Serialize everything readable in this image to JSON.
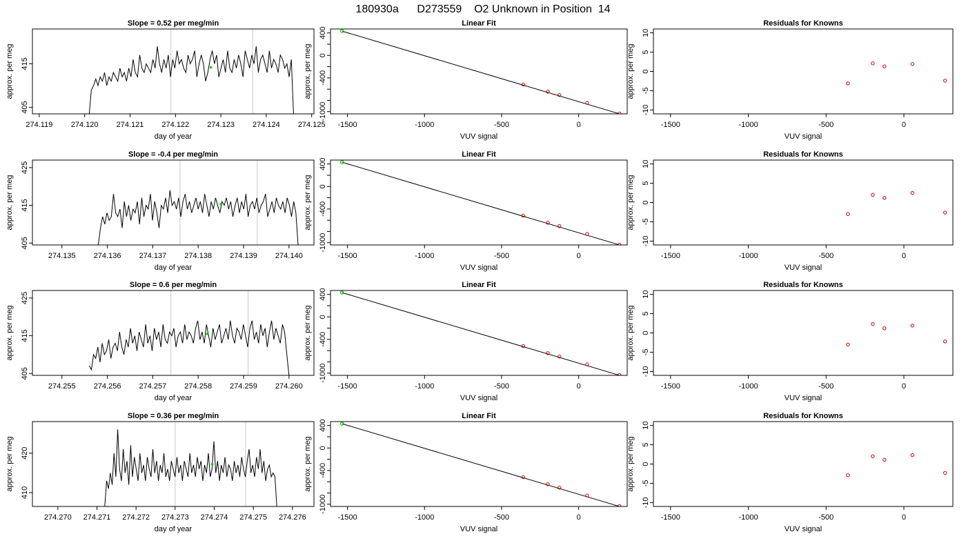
{
  "figure_title": "180930a      D273559    O2 Unknown in Position  14",
  "chart_data": [
    {
      "row": 1,
      "col": 1,
      "type": "line",
      "title": "Slope =  0.52  per meg/min",
      "xlabel": "day of year",
      "ylabel": "approx. per meg",
      "xlim": [
        274.11885,
        274.12505
      ],
      "ylim": [
        403.5,
        423
      ],
      "xticks": [
        274.119,
        274.12,
        274.121,
        274.122,
        274.123,
        274.124,
        274.125
      ],
      "yticks": [
        405,
        415
      ],
      "xdecimals": 3,
      "vlines": [
        274.1219,
        274.1237
      ],
      "x_start": 274.1201,
      "x_end": 274.1246,
      "values": [
        403.5,
        409,
        410,
        411.5,
        410,
        412,
        411,
        413,
        410,
        412,
        411,
        413,
        412,
        411,
        414,
        412,
        413,
        411,
        414,
        412,
        416,
        413,
        412,
        417,
        414,
        413,
        415,
        414,
        413,
        416,
        414,
        419,
        415,
        413,
        416,
        414,
        417,
        412,
        416,
        414,
        418,
        415,
        416,
        414,
        413,
        417,
        415,
        416,
        418,
        412,
        415,
        417,
        415,
        411,
        413,
        416,
        418,
        415,
        417,
        412,
        414,
        416,
        413,
        418,
        414,
        413,
        416,
        414,
        417,
        415,
        412,
        418,
        416,
        414,
        417,
        415,
        419,
        413,
        416,
        417,
        415,
        413,
        418,
        414,
        416,
        415,
        413,
        417,
        416,
        414,
        415,
        412,
        416,
        403.5
      ],
      "green_points": [
        {
          "x": 274.12278,
          "y": 414.2
        }
      ],
      "line_color": "#000000"
    },
    {
      "row": 1,
      "col": 2,
      "type": "scatter",
      "title": "Linear Fit",
      "xlabel": "VUV signal",
      "ylabel": "approx. per meg",
      "xlim": [
        -1610,
        315
      ],
      "ylim": [
        -1040,
        470
      ],
      "xticks": [
        -1500,
        -1000,
        -500,
        0
      ],
      "yticks": [
        400,
        0,
        -400,
        -1000
      ],
      "yminor": [
        200,
        -200,
        -600,
        -800
      ],
      "fit_line": [
        [
          -1535,
          432
        ],
        [
          265,
          -1040
        ]
      ],
      "known_points": [
        {
          "x": -360,
          "y": -518
        },
        {
          "x": -200,
          "y": -645
        },
        {
          "x": -125,
          "y": -705
        },
        {
          "x": 55,
          "y": -845
        },
        {
          "x": 265,
          "y": -1035
        }
      ],
      "unknown_points": [
        {
          "x": -1535,
          "y": 432
        }
      ],
      "known_color": "#cc0000",
      "unknown_color": "#00cc00"
    },
    {
      "row": 1,
      "col": 3,
      "type": "scatter",
      "title": "Residuals for Knowns",
      "xlabel": "VUV signal",
      "ylabel": "approx. per meg",
      "xlim": [
        -1610,
        315
      ],
      "ylim": [
        -11,
        11
      ],
      "xticks": [
        -1500,
        -1000,
        -500,
        0
      ],
      "yticks": [
        10,
        5,
        0,
        -5,
        -10
      ],
      "points": [
        {
          "x": -360,
          "y": -3.1
        },
        {
          "x": -200,
          "y": 2.1
        },
        {
          "x": -125,
          "y": 1.3
        },
        {
          "x": 55,
          "y": 1.9
        },
        {
          "x": 265,
          "y": -2.4
        }
      ],
      "point_color": "#cc0000"
    },
    {
      "row": 2,
      "col": 1,
      "type": "line",
      "title": "Slope =  -0.4  per meg/min",
      "xlabel": "day of year",
      "ylabel": "approx. per meg",
      "xlim": [
        274.13435,
        274.14055
      ],
      "ylim": [
        404.5,
        427
      ],
      "xticks": [
        274.135,
        274.136,
        274.137,
        274.138,
        274.139,
        274.14
      ],
      "yticks": [
        405,
        415,
        425
      ],
      "xdecimals": 3,
      "vlines": [
        274.1376,
        274.1393
      ],
      "x_start": 274.1358,
      "x_end": 274.1402,
      "values": [
        404.5,
        409,
        412,
        410,
        413,
        411,
        412,
        418,
        413,
        412,
        414,
        409,
        416,
        412,
        415,
        411,
        414,
        413,
        416,
        410,
        417,
        412,
        415,
        414,
        418,
        411,
        416,
        413,
        409,
        415,
        414,
        417,
        413,
        419,
        415,
        416,
        414,
        417,
        412,
        416,
        418,
        414,
        416,
        413,
        415,
        417,
        414,
        416,
        413,
        418,
        415,
        412,
        416,
        414,
        417,
        415,
        413,
        416,
        415,
        417,
        414,
        416,
        412,
        415,
        417,
        413,
        416,
        414,
        418,
        412,
        415,
        416,
        414,
        417,
        413,
        415,
        416,
        418,
        412,
        414,
        416,
        413,
        417,
        415,
        414,
        416,
        413,
        417,
        415,
        412,
        416,
        413,
        404.5
      ],
      "green_points": [
        {
          "x": 274.1385,
          "y": 415.3
        }
      ],
      "line_color": "#000000"
    },
    {
      "row": 2,
      "col": 2,
      "type": "scatter",
      "title": "Linear Fit",
      "xlabel": "VUV signal",
      "ylabel": "approx. per meg",
      "xlim": [
        -1610,
        315
      ],
      "ylim": [
        -1040,
        470
      ],
      "xticks": [
        -1500,
        -1000,
        -500,
        0
      ],
      "yticks": [
        400,
        0,
        -400,
        -1000
      ],
      "yminor": [
        200,
        -200,
        -600,
        -800
      ],
      "fit_line": [
        [
          -1535,
          432
        ],
        [
          265,
          -1040
        ]
      ],
      "known_points": [
        {
          "x": -360,
          "y": -518
        },
        {
          "x": -200,
          "y": -645
        },
        {
          "x": -125,
          "y": -705
        },
        {
          "x": 55,
          "y": -845
        },
        {
          "x": 265,
          "y": -1035
        }
      ],
      "unknown_points": [
        {
          "x": -1535,
          "y": 432
        }
      ],
      "known_color": "#cc0000",
      "unknown_color": "#00cc00"
    },
    {
      "row": 2,
      "col": 3,
      "type": "scatter",
      "title": "Residuals for Knowns",
      "xlabel": "VUV signal",
      "ylabel": "approx. per meg",
      "xlim": [
        -1610,
        315
      ],
      "ylim": [
        -11,
        11
      ],
      "xticks": [
        -1500,
        -1000,
        -500,
        0
      ],
      "yticks": [
        10,
        5,
        0,
        -5,
        -10
      ],
      "points": [
        {
          "x": -360,
          "y": -3.0
        },
        {
          "x": -200,
          "y": 2.0
        },
        {
          "x": -125,
          "y": 1.2
        },
        {
          "x": 55,
          "y": 2.5
        },
        {
          "x": 265,
          "y": -2.6
        }
      ],
      "point_color": "#cc0000"
    },
    {
      "row": 3,
      "col": 1,
      "type": "line",
      "title": "Slope =  0.6  per meg/min",
      "xlabel": "day of year",
      "ylabel": "approx. per meg",
      "xlim": [
        274.25435,
        274.26055
      ],
      "ylim": [
        404.5,
        427
      ],
      "xticks": [
        274.255,
        274.256,
        274.257,
        274.258,
        274.259,
        274.26
      ],
      "yticks": [
        405,
        415,
        425
      ],
      "xdecimals": 3,
      "vlines": [
        274.2574,
        274.2591
      ],
      "x_start": 274.2556,
      "x_end": 274.26,
      "values": [
        407,
        406,
        410,
        409,
        412,
        408,
        413,
        410,
        411,
        414,
        409,
        412,
        413,
        411,
        416,
        412,
        410,
        414,
        412,
        417,
        413,
        415,
        411,
        416,
        414,
        412,
        418,
        413,
        415,
        411,
        417,
        414,
        416,
        412,
        418,
        414,
        413,
        416,
        415,
        417,
        412,
        415,
        416,
        413,
        418,
        414,
        416,
        415,
        413,
        417,
        419,
        414,
        416,
        413,
        418,
        415,
        412,
        417,
        414,
        416,
        418,
        413,
        415,
        417,
        414,
        419,
        415,
        413,
        417,
        416,
        414,
        418,
        415,
        412,
        417,
        419,
        414,
        416,
        413,
        418,
        415,
        417,
        412,
        416,
        419,
        414,
        417,
        415,
        413,
        418,
        416,
        410,
        404.5
      ],
      "green_points": [
        {
          "x": 274.2582,
          "y": 415.5
        }
      ],
      "line_color": "#000000"
    },
    {
      "row": 3,
      "col": 2,
      "type": "scatter",
      "title": "Linear Fit",
      "xlabel": "VUV signal",
      "ylabel": "approx. per meg",
      "xlim": [
        -1610,
        315
      ],
      "ylim": [
        -1040,
        470
      ],
      "xticks": [
        -1500,
        -1000,
        -500,
        0
      ],
      "yticks": [
        400,
        0,
        -400,
        -1000
      ],
      "yminor": [
        200,
        -200,
        -600,
        -800
      ],
      "fit_line": [
        [
          -1535,
          432
        ],
        [
          265,
          -1040
        ]
      ],
      "known_points": [
        {
          "x": -360,
          "y": -518
        },
        {
          "x": -200,
          "y": -645
        },
        {
          "x": -125,
          "y": -705
        },
        {
          "x": 55,
          "y": -845
        },
        {
          "x": 265,
          "y": -1035
        }
      ],
      "unknown_points": [
        {
          "x": -1535,
          "y": 432
        }
      ],
      "known_color": "#cc0000",
      "unknown_color": "#00cc00"
    },
    {
      "row": 3,
      "col": 3,
      "type": "scatter",
      "title": "Residuals for Knowns",
      "xlabel": "VUV signal",
      "ylabel": "approx. per meg",
      "xlim": [
        -1610,
        315
      ],
      "ylim": [
        -11,
        11
      ],
      "xticks": [
        -1500,
        -1000,
        -500,
        0
      ],
      "yticks": [
        10,
        5,
        0,
        -5,
        -10
      ],
      "points": [
        {
          "x": -360,
          "y": -3.0
        },
        {
          "x": -200,
          "y": 2.3
        },
        {
          "x": -125,
          "y": 1.2
        },
        {
          "x": 55,
          "y": 1.9
        },
        {
          "x": 265,
          "y": -2.2
        }
      ],
      "point_color": "#cc0000"
    },
    {
      "row": 4,
      "col": 1,
      "type": "line",
      "title": "Slope =  0.36  per meg/min",
      "xlabel": "day of year",
      "ylabel": "approx. per meg",
      "xlim": [
        274.26935,
        274.27655
      ],
      "ylim": [
        406.5,
        428
      ],
      "xticks": [
        274.27,
        274.271,
        274.272,
        274.273,
        274.274,
        274.275,
        274.276
      ],
      "yticks": [
        410,
        420
      ],
      "xdecimals": 3,
      "vlines": [
        274.273,
        274.2748
      ],
      "x_start": 274.2712,
      "x_end": 274.2756,
      "values": [
        406.5,
        413,
        411,
        415,
        412,
        420,
        414,
        426,
        416,
        413,
        421,
        415,
        418,
        412,
        422,
        414,
        419,
        416,
        413,
        420,
        415,
        417,
        413,
        419,
        416,
        414,
        421,
        415,
        418,
        413,
        417,
        415,
        420,
        414,
        416,
        413,
        418,
        416,
        414,
        419,
        415,
        417,
        413,
        418,
        416,
        414,
        420,
        415,
        417,
        414,
        419,
        416,
        418,
        413,
        417,
        415,
        420,
        414,
        416,
        423,
        415,
        418,
        413,
        417,
        415,
        419,
        414,
        417,
        416,
        413,
        418,
        415,
        417,
        414,
        419,
        416,
        414,
        418,
        421,
        415,
        417,
        414,
        419,
        416,
        421,
        415,
        418,
        413,
        416,
        417,
        414,
        415,
        414,
        406.5
      ],
      "green_points": [
        {
          "x": 274.27395,
          "y": 417.2
        }
      ],
      "line_color": "#000000"
    },
    {
      "row": 4,
      "col": 2,
      "type": "scatter",
      "title": "Linear Fit",
      "xlabel": "VUV signal",
      "ylabel": "approx. per meg",
      "xlim": [
        -1610,
        315
      ],
      "ylim": [
        -1040,
        470
      ],
      "xticks": [
        -1500,
        -1000,
        -500,
        0
      ],
      "yticks": [
        400,
        0,
        -400,
        -1000
      ],
      "yminor": [
        200,
        -200,
        -600,
        -800
      ],
      "fit_line": [
        [
          -1535,
          432
        ],
        [
          265,
          -1040
        ]
      ],
      "known_points": [
        {
          "x": -360,
          "y": -518
        },
        {
          "x": -200,
          "y": -645
        },
        {
          "x": -125,
          "y": -705
        },
        {
          "x": 55,
          "y": -845
        },
        {
          "x": 265,
          "y": -1035
        }
      ],
      "unknown_points": [
        {
          "x": -1535,
          "y": 432
        }
      ],
      "known_color": "#cc0000",
      "unknown_color": "#00cc00"
    },
    {
      "row": 4,
      "col": 3,
      "type": "scatter",
      "title": "Residuals for Knowns",
      "xlabel": "VUV signal",
      "ylabel": "approx. per meg",
      "xlim": [
        -1610,
        315
      ],
      "ylim": [
        -11,
        11
      ],
      "xticks": [
        -1500,
        -1000,
        -500,
        0
      ],
      "yticks": [
        10,
        5,
        0,
        -5,
        -10
      ],
      "points": [
        {
          "x": -360,
          "y": -2.9
        },
        {
          "x": -200,
          "y": 2.0
        },
        {
          "x": -125,
          "y": 1.1
        },
        {
          "x": 55,
          "y": 2.3
        },
        {
          "x": 265,
          "y": -2.3
        }
      ],
      "point_color": "#cc0000"
    }
  ]
}
